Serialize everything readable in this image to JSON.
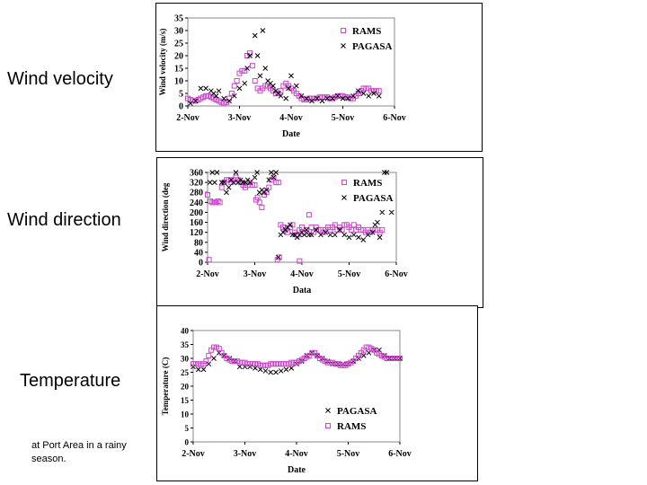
{
  "slide": {
    "labels": {
      "wind_velocity": "Wind velocity",
      "wind_direction": "Wind direction",
      "temperature": "Temperature"
    },
    "note": "at Port Area in a rainy season."
  },
  "colors": {
    "rams": "#cc44cc",
    "pagasa": "#000000"
  },
  "chart_data": [
    {
      "id": "velocity",
      "type": "scatter",
      "xlabel": "Date",
      "ylabel": "Wind velocity (m/s)",
      "x_ticks": [
        "2-Nov",
        "3-Nov",
        "4-Nov",
        "5-Nov",
        "6-Nov"
      ],
      "xlim": [
        0,
        4
      ],
      "ylim": [
        0,
        35
      ],
      "y_ticks": [
        0,
        5,
        10,
        15,
        20,
        25,
        30,
        35
      ],
      "legend": "top-right",
      "grid": false,
      "series": [
        {
          "name": "RAMS",
          "marker": "square",
          "x": [
            0.0,
            0.05,
            0.1,
            0.15,
            0.2,
            0.25,
            0.3,
            0.35,
            0.4,
            0.45,
            0.5,
            0.55,
            0.6,
            0.65,
            0.7,
            0.75,
            0.8,
            0.85,
            0.9,
            0.95,
            1.0,
            1.05,
            1.1,
            1.15,
            1.2,
            1.25,
            1.3,
            1.35,
            1.4,
            1.45,
            1.5,
            1.55,
            1.6,
            1.65,
            1.7,
            1.75,
            1.8,
            1.85,
            1.9,
            1.95,
            2.0,
            2.05,
            2.1,
            2.15,
            2.2,
            2.25,
            2.3,
            2.35,
            2.4,
            2.45,
            2.5,
            2.55,
            2.6,
            2.65,
            2.7,
            2.75,
            2.8,
            2.85,
            2.9,
            2.95,
            3.0,
            3.05,
            3.1,
            3.15,
            3.2,
            3.25,
            3.3,
            3.35,
            3.4,
            3.45,
            3.5,
            3.55,
            3.6,
            3.65,
            3.7
          ],
          "y": [
            3,
            2.5,
            2,
            2,
            2.5,
            3,
            3.5,
            4,
            4,
            3.5,
            3,
            2.5,
            2,
            1.5,
            1,
            1.5,
            3,
            5,
            8,
            10,
            13,
            14,
            14,
            20,
            21,
            16,
            10,
            7,
            6,
            7,
            8,
            8,
            7,
            6,
            5,
            5,
            6,
            8,
            9,
            8,
            7,
            6,
            5,
            4,
            3,
            2.5,
            2.5,
            3,
            3,
            3,
            3,
            3.5,
            3.5,
            3.5,
            3.5,
            3,
            3,
            3.5,
            4,
            4,
            4,
            3.5,
            3.5,
            3,
            3,
            4,
            5,
            6,
            7,
            7,
            7,
            6,
            6,
            6,
            6
          ]
        },
        {
          "name": "PAGASA",
          "marker": "x",
          "x": [
            0.05,
            0.15,
            0.25,
            0.35,
            0.45,
            0.5,
            0.55,
            0.6,
            0.7,
            0.8,
            0.9,
            1.0,
            1.1,
            1.15,
            1.2,
            1.3,
            1.35,
            1.4,
            1.45,
            1.5,
            1.55,
            1.6,
            1.65,
            1.7,
            1.75,
            1.8,
            1.9,
            1.95,
            2.0,
            2.1,
            2.2,
            2.3,
            2.4,
            2.5,
            2.6,
            2.7,
            2.8,
            2.9,
            3.0,
            3.1,
            3.2,
            3.3,
            3.4,
            3.5,
            3.6,
            3.7
          ],
          "y": [
            1,
            2,
            7,
            7,
            6,
            5,
            4,
            6,
            3,
            2,
            4,
            7,
            9,
            15,
            20,
            28,
            20,
            12,
            30,
            15,
            10,
            9,
            8,
            6,
            5,
            4,
            3,
            7,
            12,
            8,
            4,
            3,
            2,
            3,
            2,
            3,
            3,
            4,
            3,
            3,
            4,
            6,
            5,
            4,
            5,
            4
          ]
        }
      ]
    },
    {
      "id": "direction",
      "type": "scatter",
      "xlabel": "Data",
      "ylabel": "Wind direction (deg",
      "x_ticks": [
        "2-Nov",
        "3-Nov",
        "4-Nov",
        "5-Nov",
        "6-Nov"
      ],
      "xlim": [
        0,
        4
      ],
      "ylim": [
        0,
        360
      ],
      "y_ticks": [
        0,
        40,
        80,
        120,
        160,
        200,
        240,
        280,
        320,
        360
      ],
      "legend": "top-right",
      "grid": false,
      "series": [
        {
          "name": "RAMS",
          "marker": "square",
          "x": [
            0.0,
            0.03,
            0.06,
            0.1,
            0.14,
            0.18,
            0.22,
            0.26,
            0.3,
            0.35,
            0.4,
            0.45,
            0.5,
            0.55,
            0.6,
            0.65,
            0.7,
            0.75,
            0.8,
            0.85,
            0.9,
            0.95,
            1.0,
            1.03,
            1.06,
            1.1,
            1.15,
            1.2,
            1.25,
            1.3,
            1.35,
            1.4,
            1.45,
            1.5,
            1.55,
            1.6,
            1.65,
            1.7,
            1.75,
            1.8,
            1.85,
            1.9,
            1.95,
            2.0,
            2.05,
            2.1,
            2.15,
            2.2,
            2.25,
            2.3,
            2.35,
            2.4,
            2.45,
            2.5,
            2.55,
            2.6,
            2.65,
            2.7,
            2.75,
            2.8,
            2.85,
            2.9,
            2.95,
            3.0,
            3.05,
            3.1,
            3.15,
            3.2,
            3.25,
            3.3,
            3.35,
            3.4,
            3.45,
            3.5,
            3.55,
            3.6,
            3.65,
            3.7,
            1.48,
            1.52,
            1.95
          ],
          "y": [
            270,
            10,
            245,
            240,
            240,
            240,
            245,
            240,
            300,
            320,
            330,
            330,
            320,
            330,
            340,
            330,
            320,
            310,
            300,
            310,
            320,
            310,
            310,
            250,
            260,
            240,
            220,
            270,
            280,
            300,
            330,
            340,
            320,
            320,
            150,
            140,
            130,
            120,
            140,
            150,
            120,
            110,
            130,
            140,
            120,
            130,
            190,
            140,
            120,
            140,
            130,
            130,
            120,
            130,
            140,
            130,
            140,
            150,
            130,
            140,
            130,
            150,
            150,
            140,
            130,
            150,
            130,
            140,
            130,
            130,
            120,
            130,
            120,
            130,
            130,
            130,
            120,
            130,
            10,
            20,
            5
          ]
        },
        {
          "name": "PAGASA",
          "marker": "x",
          "x": [
            0.05,
            0.1,
            0.15,
            0.2,
            0.3,
            0.35,
            0.4,
            0.45,
            0.5,
            0.55,
            0.6,
            0.65,
            0.7,
            0.75,
            0.8,
            0.85,
            0.9,
            1.0,
            1.05,
            1.1,
            1.15,
            1.2,
            1.25,
            1.3,
            1.35,
            1.4,
            1.45,
            1.5,
            1.55,
            1.6,
            1.65,
            1.7,
            1.75,
            1.8,
            1.85,
            1.9,
            1.95,
            2.0,
            2.05,
            2.1,
            2.15,
            2.2,
            2.3,
            2.4,
            2.5,
            2.6,
            2.7,
            2.8,
            2.9,
            3.0,
            3.1,
            3.2,
            3.3,
            3.4,
            3.5,
            3.55,
            3.6,
            3.65,
            3.7,
            3.75,
            3.8,
            3.9
          ],
          "y": [
            320,
            360,
            320,
            360,
            320,
            320,
            280,
            300,
            330,
            320,
            360,
            320,
            330,
            320,
            320,
            330,
            320,
            340,
            360,
            280,
            290,
            280,
            290,
            330,
            360,
            340,
            360,
            20,
            110,
            120,
            130,
            140,
            150,
            110,
            110,
            100,
            110,
            120,
            110,
            130,
            110,
            110,
            130,
            110,
            120,
            110,
            110,
            130,
            110,
            100,
            110,
            100,
            90,
            110,
            120,
            150,
            160,
            100,
            200,
            360,
            360,
            200
          ]
        }
      ]
    },
    {
      "id": "temperature",
      "type": "scatter",
      "xlabel": "Date",
      "ylabel": "Temperature (C)",
      "x_ticks": [
        "2-Nov",
        "3-Nov",
        "4-Nov",
        "5-Nov",
        "6-Nov"
      ],
      "xlim": [
        0,
        4
      ],
      "ylim": [
        0,
        40
      ],
      "y_ticks": [
        0,
        5,
        10,
        15,
        20,
        25,
        30,
        35,
        40
      ],
      "legend": "bottom-right",
      "grid": false,
      "series": [
        {
          "name": "PAGASA",
          "marker": "x",
          "x": [
            0.0,
            0.1,
            0.2,
            0.3,
            0.4,
            0.5,
            0.6,
            0.7,
            0.8,
            0.9,
            1.0,
            1.1,
            1.2,
            1.3,
            1.4,
            1.5,
            1.6,
            1.7,
            1.8,
            1.9,
            2.0,
            2.1,
            2.2,
            2.3,
            2.4,
            2.5,
            2.6,
            2.7,
            2.8,
            2.9,
            3.0,
            3.1,
            3.2,
            3.3,
            3.4,
            3.5,
            3.6,
            3.7,
            3.8,
            3.9,
            4.0
          ],
          "y": [
            27,
            26,
            26,
            28,
            30,
            32,
            31,
            30,
            29,
            27,
            27,
            27,
            26.5,
            26,
            25.5,
            25,
            25,
            25.5,
            26,
            26.5,
            28,
            29,
            31,
            32,
            31,
            30,
            29,
            28,
            28,
            28,
            28,
            29,
            30,
            31,
            32,
            33,
            33,
            31,
            30,
            30,
            30
          ]
        },
        {
          "name": "RAMS",
          "marker": "square",
          "x": [
            0.0,
            0.05,
            0.1,
            0.15,
            0.2,
            0.25,
            0.3,
            0.35,
            0.4,
            0.45,
            0.5,
            0.55,
            0.6,
            0.65,
            0.7,
            0.75,
            0.8,
            0.85,
            0.9,
            0.95,
            1.0,
            1.05,
            1.1,
            1.15,
            1.2,
            1.25,
            1.3,
            1.35,
            1.4,
            1.45,
            1.5,
            1.55,
            1.6,
            1.65,
            1.7,
            1.75,
            1.8,
            1.85,
            1.9,
            1.95,
            2.0,
            2.05,
            2.1,
            2.15,
            2.2,
            2.25,
            2.3,
            2.35,
            2.4,
            2.45,
            2.5,
            2.55,
            2.6,
            2.65,
            2.7,
            2.75,
            2.8,
            2.85,
            2.9,
            2.95,
            3.0,
            3.05,
            3.1,
            3.15,
            3.2,
            3.25,
            3.3,
            3.35,
            3.4,
            3.45,
            3.5,
            3.55,
            3.6,
            3.65,
            3.7,
            3.75,
            3.8,
            3.85,
            3.9,
            3.95,
            4.0
          ],
          "y": [
            28,
            28,
            28,
            27.5,
            28,
            29,
            31,
            33,
            34,
            34,
            33.5,
            32,
            31,
            30,
            29.5,
            29,
            29,
            29,
            28.5,
            28.5,
            28.5,
            28,
            28,
            28,
            28,
            28,
            27.5,
            27.5,
            27.5,
            27.5,
            28,
            28,
            28,
            28,
            28,
            28,
            28,
            28,
            28.5,
            28.5,
            28.5,
            29,
            29.5,
            30,
            30.5,
            31,
            32,
            32,
            31,
            30,
            29.5,
            29,
            28.5,
            28.5,
            28.5,
            28,
            28,
            27.5,
            27.5,
            27.5,
            28,
            28.5,
            29,
            30,
            31,
            32,
            33,
            34,
            34,
            33.5,
            33,
            32,
            31.5,
            31,
            30.5,
            30,
            30,
            30,
            30,
            30,
            30
          ]
        }
      ]
    }
  ]
}
